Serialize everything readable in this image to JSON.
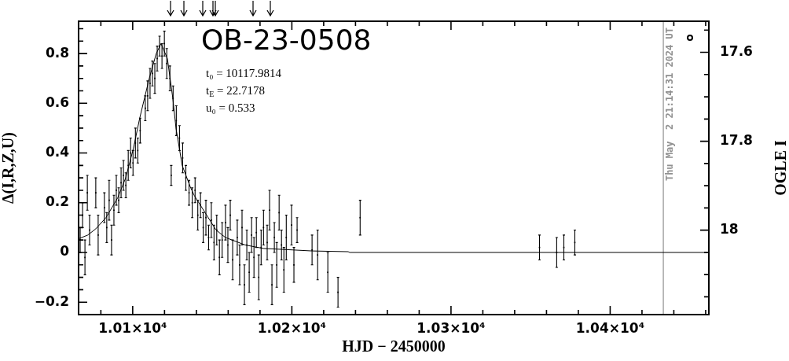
{
  "chart_data": {
    "type": "scatter",
    "title": "OB-23-0508",
    "xlabel": "HJD − 2450000",
    "ylabel": "Δ(I,R,Z,U)",
    "y2label": "OGLE I",
    "annotations": [
      "t₀ = 10117.9814",
      "t$_{E}$ = 22.7178",
      "u₀ = 0.533",
      {
        "text": "Thu May  2 21:14:31 2024 UT",
        "x": 10433.4
      }
    ],
    "xlim": [
      10066,
      10462
    ],
    "xticks": [
      {
        "value": 10080,
        "label": null
      },
      {
        "value": 10100,
        "label": "1.01×10⁴"
      },
      {
        "value": 10120,
        "label": null
      },
      {
        "value": 10140,
        "label": null
      },
      {
        "value": 10160,
        "label": null
      },
      {
        "value": 10180,
        "label": null
      },
      {
        "value": 10200,
        "label": "1.02×10⁴"
      },
      {
        "value": 10220,
        "label": null
      },
      {
        "value": 10240,
        "label": null
      },
      {
        "value": 10260,
        "label": null
      },
      {
        "value": 10280,
        "label": null
      },
      {
        "value": 10300,
        "label": "1.03×10⁴"
      },
      {
        "value": 10320,
        "label": null
      },
      {
        "value": 10340,
        "label": null
      },
      {
        "value": 10360,
        "label": null
      },
      {
        "value": 10380,
        "label": null
      },
      {
        "value": 10400,
        "label": "1.04×10⁴"
      },
      {
        "value": 10420,
        "label": null
      },
      {
        "value": 10440,
        "label": null
      },
      {
        "value": 10460,
        "label": null
      }
    ],
    "ylim": [
      -0.25,
      0.93
    ],
    "yticks": [
      {
        "value": -0.2,
        "label": "−0.2"
      },
      {
        "value": -0.15,
        "label": null
      },
      {
        "value": -0.1,
        "label": null
      },
      {
        "value": -0.05,
        "label": null
      },
      0,
      {
        "value": 0.05,
        "label": null
      },
      {
        "value": 0.1,
        "label": null
      },
      {
        "value": 0.15,
        "label": null
      },
      0.2,
      {
        "value": 0.25,
        "label": null
      },
      {
        "value": 0.3,
        "label": null
      },
      {
        "value": 0.35,
        "label": null
      },
      0.4,
      {
        "value": 0.45,
        "label": null
      },
      {
        "value": 0.5,
        "label": null
      },
      {
        "value": 0.55,
        "label": null
      },
      0.6,
      {
        "value": 0.65,
        "label": null
      },
      {
        "value": 0.7,
        "label": null
      },
      {
        "value": 0.75,
        "label": null
      },
      0.8,
      {
        "value": 0.85,
        "label": null
      },
      {
        "value": 0.9,
        "label": null
      }
    ],
    "y2lim": [
      18.19,
      17.53
    ],
    "y2ticks": [
      {
        "value": 17.55,
        "label": null
      },
      17.6,
      {
        "value": 17.65,
        "label": null
      },
      {
        "value": 17.7,
        "label": null
      },
      {
        "value": 17.75,
        "label": null
      },
      17.8,
      {
        "value": 17.85,
        "label": null
      },
      {
        "value": 17.9,
        "label": null
      },
      {
        "value": 17.95,
        "label": null
      },
      18,
      {
        "value": 18.05,
        "label": null
      },
      {
        "value": 18.1,
        "label": null
      },
      {
        "value": 18.15,
        "label": null
      }
    ],
    "ref_lines": [
      {
        "axis": "x",
        "value": 10433.4,
        "color": "#909090"
      }
    ],
    "series": [
      {
        "color": "#000000",
        "marker": "square",
        "x": [
          10067.0,
          10068.5,
          10070.0,
          10071.5,
          10072.9,
          10076.8,
          10078.3,
          10082.2,
          10083.7,
          10085.2,
          10086.7,
          10088.2,
          10089.7,
          10091.2,
          10092.7,
          10094.2,
          10095.7,
          10097.2,
          10098.7,
          10100.2,
          10101.7,
          10103.2,
          10104.7,
          10107.9,
          10109.4,
          10110.9,
          10112.4,
          10113.9,
          10115.4,
          10116.9,
          10118.4,
          10119.9,
          10121.4,
          10123.4,
          10124.2,
          10125.4,
          10127.4,
          10129.4,
          10131.4,
          10133.4,
          10135.4,
          10137.4,
          10139.2,
          10140.9,
          10142.6,
          10144.3,
          10146.0,
          10147.7,
          10149.4,
          10151.1,
          10152.8,
          10154.5,
          10156.2,
          10158.3,
          10159.8,
          10161.3,
          10162.8,
          10165.7,
          10167.2,
          10168.7,
          10170.2,
          10171.7,
          10173.2,
          10174.7,
          10176.2,
          10177.7,
          10179.2,
          10180.7,
          10182.2,
          10184.5,
          10186.0,
          10187.5,
          10189.0,
          10190.5,
          10192.0,
          10193.5,
          10195.0,
          10196.5,
          10199.8,
          10201.3,
          10203.3,
          10212.7,
          10216.2,
          10222.6,
          10229.0,
          10242.9,
          10355.6,
          10366.4,
          10370.9,
          10377.8
        ],
        "values": [
          0.05,
          0.15,
          -0.02,
          0.24,
          0.09,
          0.24,
          0.07,
          0.18,
          0.1,
          0.21,
          0.05,
          0.17,
          0.25,
          0.21,
          0.28,
          0.31,
          0.27,
          0.35,
          0.4,
          0.36,
          0.44,
          0.41,
          0.49,
          0.58,
          0.63,
          0.68,
          0.72,
          0.7,
          0.78,
          0.83,
          0.79,
          0.84,
          0.76,
          0.7,
          0.31,
          0.62,
          0.53,
          0.46,
          0.38,
          0.3,
          0.24,
          0.2,
          0.25,
          0.15,
          0.19,
          0.1,
          0.14,
          0.06,
          0.13,
          0.04,
          0.09,
          -0.02,
          0.05,
          0.12,
          0.03,
          0.15,
          -0.03,
          0.06,
          -0.05,
          0.1,
          -0.13,
          0.03,
          -0.08,
          0.07,
          -0.02,
          0.08,
          -0.1,
          0.02,
          0.1,
          0.04,
          0.17,
          -0.13,
          0.06,
          -0.05,
          0.16,
          0.03,
          -0.07,
          0.06,
          0.11,
          -0.05,
          0.09,
          0.01,
          -0.01,
          -0.08,
          -0.16,
          0.14,
          0.02,
          0.0,
          0.02,
          0.04
        ],
        "errors": [
          0.05,
          0.05,
          0.07,
          0.07,
          0.06,
          0.06,
          0.08,
          0.06,
          0.06,
          0.08,
          0.06,
          0.06,
          0.06,
          0.05,
          0.06,
          0.06,
          0.05,
          0.06,
          0.06,
          0.05,
          0.06,
          0.05,
          0.05,
          0.05,
          0.06,
          0.06,
          0.05,
          0.06,
          0.05,
          0.04,
          0.05,
          0.05,
          0.06,
          0.05,
          0.04,
          0.05,
          0.06,
          0.05,
          0.06,
          0.05,
          0.05,
          0.06,
          0.05,
          0.06,
          0.05,
          0.06,
          0.07,
          0.05,
          0.07,
          0.07,
          0.06,
          0.07,
          0.07,
          0.07,
          0.07,
          0.06,
          0.08,
          0.07,
          0.08,
          0.07,
          0.08,
          0.06,
          0.08,
          0.07,
          0.08,
          0.06,
          0.09,
          0.07,
          0.07,
          0.07,
          0.08,
          0.08,
          0.06,
          0.09,
          0.07,
          0.06,
          0.09,
          0.09,
          0.08,
          0.07,
          0.05,
          0.06,
          0.1,
          0.08,
          0.06,
          0.07,
          0.05,
          0.06,
          0.05,
          0.05
        ]
      },
      {
        "type": "line",
        "color": "#000000",
        "marker": "none",
        "x": [
          10066,
          10071.8,
          10076.8,
          10083.2,
          10090.6,
          10095.6,
          10100.5,
          10104.4,
          10110.4,
          10114.8,
          10117.8,
          10121.8,
          10125.2,
          10127.2,
          10131.1,
          10136.1,
          10138.6,
          10152.4,
          10158.3,
          10170.7,
          10182.1,
          10191.9,
          10212.7,
          10235.4,
          10236.4,
          10462
        ],
        "values": [
          0.055,
          0.07,
          0.095,
          0.14,
          0.22,
          0.3,
          0.42,
          0.54,
          0.7,
          0.8,
          0.84,
          0.78,
          0.62,
          0.5,
          0.35,
          0.265,
          0.23,
          0.09,
          0.06,
          0.03,
          0.016,
          0.013,
          0.006,
          0.003,
          0,
          0
        ]
      }
    ]
  }
}
